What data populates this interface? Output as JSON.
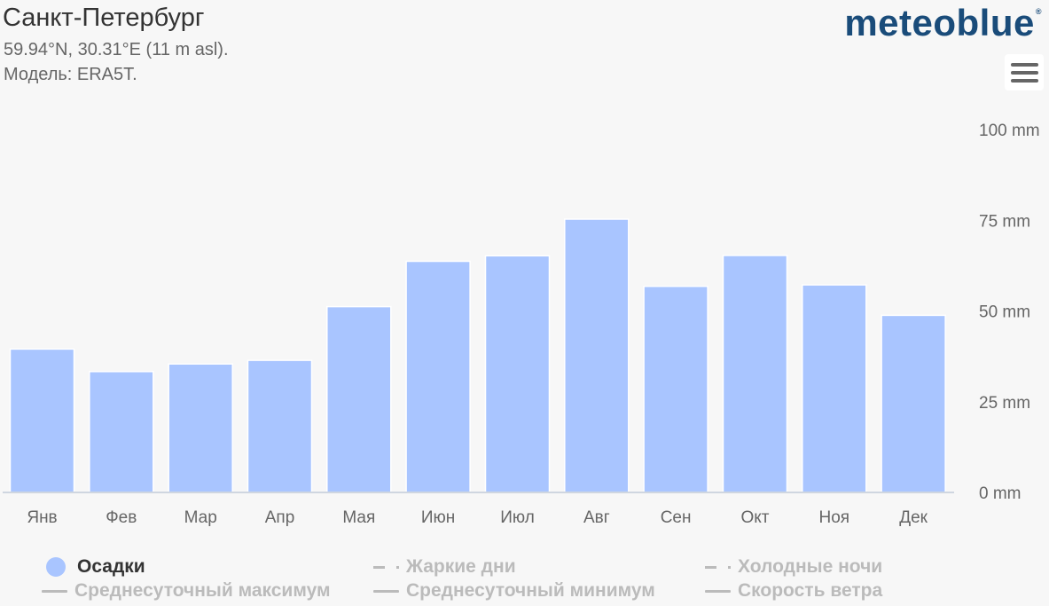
{
  "header": {
    "title": "Санкт-Петербург",
    "coords": "59.94°N, 30.31°E (11 m asl).",
    "model": "Модель: ERA5T."
  },
  "brand": {
    "logo": "meteoblue",
    "reg": "®"
  },
  "menu": {
    "icon": "hamburger-menu-icon"
  },
  "colors": {
    "bar": "#a9c5ff",
    "axis": "#cfd6e0",
    "text": "#333333",
    "muted": "#bbbbbb"
  },
  "chart_data": {
    "type": "bar",
    "categories": [
      "Янв",
      "Фев",
      "Мар",
      "Апр",
      "Мая",
      "Июн",
      "Июл",
      "Авг",
      "Сен",
      "Окт",
      "Ноя",
      "Дек"
    ],
    "series": [
      {
        "name": "Осадки",
        "values": [
          39.5,
          33.3,
          35.4,
          36.4,
          51.2,
          63.7,
          65.2,
          75.3,
          56.8,
          65.3,
          57.2,
          48.8
        ]
      }
    ],
    "ylim": [
      0,
      100
    ],
    "yticks": [
      0,
      25,
      50,
      75,
      100
    ],
    "ytick_labels": [
      "0 mm",
      "25 mm",
      "50 mm",
      "75 mm",
      "100 mm"
    ],
    "grid": false,
    "legend_position": "bottom"
  },
  "legend": {
    "items": [
      {
        "label": "Осадки",
        "active": true
      },
      {
        "label": "Жаркие дни",
        "active": false
      },
      {
        "label": "Холодные ночи",
        "active": false
      },
      {
        "label": "Среднесуточный максимум",
        "active": false
      },
      {
        "label": "Среднесуточный минимум",
        "active": false
      },
      {
        "label": "Скорость ветра",
        "active": false
      }
    ]
  }
}
